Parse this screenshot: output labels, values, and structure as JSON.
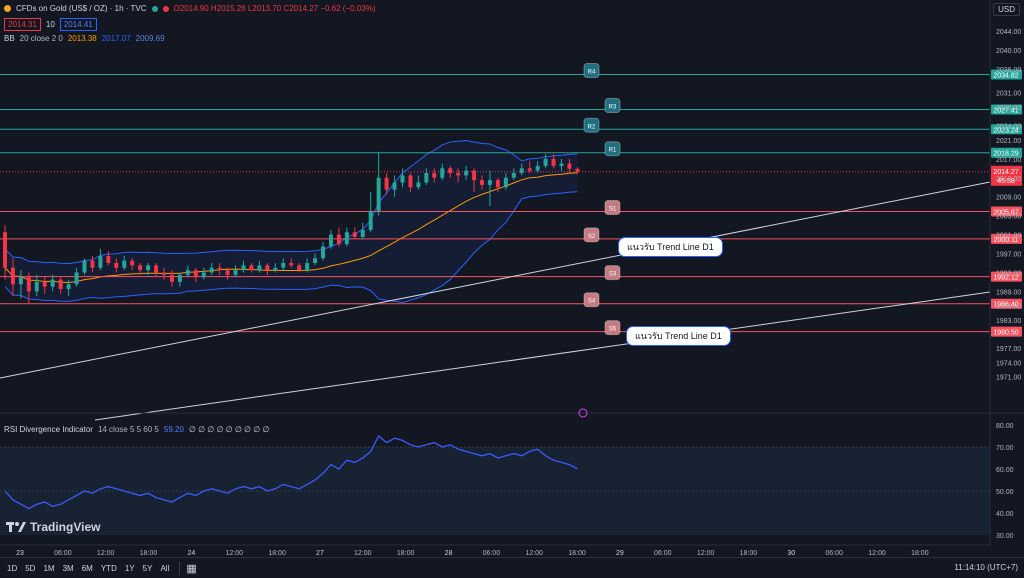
{
  "header": {
    "title": "CFDs on Gold (US$ / OZ) · 1h · TVC",
    "ohlc": "O2014.90 H2015.26 L2013.70 C2014.27 −0.62 (−0.03%)",
    "bid": "2014.31",
    "spread": "10",
    "ask": "2014.41",
    "currency": "USD"
  },
  "bb": {
    "name": "BB",
    "params": "20 close 2 0",
    "basis": "2013.38",
    "upper": "2017.07",
    "lower": "2009.69"
  },
  "rsi": {
    "name": "RSI Divergence Indicator",
    "params": "14 close 5 5 60 5",
    "value": "59.20",
    "extras": "∅ ∅ ∅ ∅ ∅ ∅ ∅ ∅ ∅"
  },
  "levels": [
    {
      "name": "R4",
      "price": 2034.82,
      "label": "2034.82",
      "kind": "res"
    },
    {
      "name": "R3",
      "price": 2027.41,
      "label": "2027.41",
      "kind": "res"
    },
    {
      "name": "R2",
      "price": 2023.24,
      "label": "2023.24",
      "kind": "res"
    },
    {
      "name": "R1",
      "price": 2018.29,
      "label": "2018.29",
      "kind": "res"
    },
    {
      "name": "S1",
      "price": 2005.87,
      "label": "2005.87",
      "kind": "sup"
    },
    {
      "name": "S2",
      "price": 2000.11,
      "label": "2000.11",
      "kind": "sup"
    },
    {
      "name": "S3",
      "price": 1992.12,
      "label": "1992.12",
      "kind": "sup"
    },
    {
      "name": "S4",
      "price": 1986.4,
      "label": "1986.40",
      "kind": "sup"
    },
    {
      "name": "S5",
      "price": 1980.5,
      "label": "1980.50",
      "kind": "sup"
    }
  ],
  "current_price": {
    "price": 2014.27,
    "label": "2014.27",
    "countdown": "45:58"
  },
  "price_axis": [
    "2044.00",
    "2040.00",
    "2036.00",
    "2031.00",
    "2028.00",
    "2024.00",
    "2021.00",
    "2017.00",
    "2013.00",
    "2009.00",
    "2005.00",
    "2001.00",
    "1997.00",
    "1993.00",
    "1989.00",
    "1986.00",
    "1983.00",
    "1977.00",
    "1974.00",
    "1971.00"
  ],
  "rsi_axis": [
    "80.00",
    "70.00",
    "60.00",
    "50.00",
    "40.00",
    "30.00"
  ],
  "time_axis": [
    "23",
    "06:00",
    "12:00",
    "18:00",
    "24",
    "12:00",
    "18:00",
    "27",
    "12:00",
    "18:00",
    "28",
    "06:00",
    "12:00",
    "18:00",
    "29",
    "06:00",
    "12:00",
    "18:00",
    "30",
    "06:00",
    "12:00",
    "18:00"
  ],
  "annotations": [
    {
      "text": "แนวรับ Trend Line D1"
    },
    {
      "text": "แนวรับ Trend Line D1"
    }
  ],
  "brand": "TradingView",
  "toolbar": {
    "timeframes": [
      "1D",
      "5D",
      "1M",
      "3M",
      "6M",
      "YTD",
      "1Y",
      "5Y",
      "All"
    ],
    "clock": "11:14:10 (UTC+7)"
  },
  "colors": {
    "up": "#26a69a",
    "down": "#f23645",
    "resistance": "#26a69a",
    "support": "#f7525f",
    "bb_band": "#2962ff",
    "bb_basis": "#ff9800",
    "rsi_line": "#3d5afe"
  },
  "chart_data": {
    "type": "candlestick",
    "interval": "1h",
    "symbol": "CFDs on Gold (US$ / OZ)",
    "candles": [
      [
        2001.5,
        1994.0,
        2003.0,
        1991.5
      ],
      [
        1994.0,
        1990.5,
        1996.0,
        1988.0
      ],
      [
        1990.5,
        1992.0,
        1993.5,
        1987.5
      ],
      [
        1992.0,
        1989.0,
        1993.0,
        1986.5
      ],
      [
        1989.0,
        1991.0,
        1992.5,
        1988.0
      ],
      [
        1991.0,
        1990.0,
        1992.0,
        1988.5
      ],
      [
        1990.0,
        1991.5,
        1992.5,
        1989.0
      ],
      [
        1991.5,
        1989.5,
        1992.0,
        1988.5
      ],
      [
        1989.5,
        1990.5,
        1991.5,
        1988.0
      ],
      [
        1990.5,
        1993.0,
        1994.0,
        1990.0
      ],
      [
        1993.0,
        1995.5,
        1996.0,
        1992.5
      ],
      [
        1995.5,
        1994.0,
        1996.5,
        1993.0
      ],
      [
        1994.0,
        1996.5,
        1998.0,
        1993.5
      ],
      [
        1996.5,
        1995.0,
        1997.5,
        1994.5
      ],
      [
        1995.0,
        1994.0,
        1996.0,
        1993.0
      ],
      [
        1994.0,
        1995.5,
        1996.5,
        1993.5
      ],
      [
        1995.5,
        1994.5,
        1996.0,
        1993.5
      ],
      [
        1994.5,
        1993.5,
        1995.0,
        1992.5
      ],
      [
        1993.5,
        1994.5,
        1995.0,
        1992.5
      ],
      [
        1994.5,
        1993.0,
        1995.0,
        1992.0
      ],
      [
        1993.0,
        1992.5,
        1994.0,
        1991.5
      ],
      [
        1992.5,
        1991.0,
        1993.5,
        1990.0
      ],
      [
        1991.0,
        1992.5,
        1993.0,
        1990.0
      ],
      [
        1992.5,
        1993.5,
        1994.5,
        1992.0
      ],
      [
        1993.5,
        1992.0,
        1994.0,
        1991.0
      ],
      [
        1992.0,
        1993.0,
        1994.0,
        1991.5
      ],
      [
        1993.0,
        1994.0,
        1995.0,
        1992.5
      ],
      [
        1994.0,
        1993.5,
        1995.0,
        1992.5
      ],
      [
        1993.5,
        1992.5,
        1994.0,
        1991.5
      ],
      [
        1992.5,
        1993.5,
        1994.5,
        1992.0
      ],
      [
        1993.5,
        1994.5,
        1995.5,
        1993.0
      ],
      [
        1994.5,
        1993.5,
        1995.0,
        1993.0
      ],
      [
        1993.5,
        1994.5,
        1995.5,
        1993.0
      ],
      [
        1994.5,
        1993.5,
        1995.0,
        1992.5
      ],
      [
        1993.5,
        1994.0,
        1995.0,
        1993.0
      ],
      [
        1994.0,
        1995.0,
        1996.0,
        1993.5
      ],
      [
        1995.0,
        1994.5,
        1996.0,
        1994.0
      ],
      [
        1994.5,
        1993.5,
        1995.0,
        1993.0
      ],
      [
        1993.5,
        1995.0,
        1996.0,
        1993.0
      ],
      [
        1995.0,
        1996.0,
        1997.0,
        1994.5
      ],
      [
        1996.0,
        1998.5,
        1999.5,
        1995.5
      ],
      [
        1998.5,
        2001.0,
        2002.0,
        1998.0
      ],
      [
        2001.0,
        1999.0,
        2002.5,
        1998.5
      ],
      [
        1999.0,
        2001.5,
        2002.5,
        1998.5
      ],
      [
        2001.5,
        2000.5,
        2002.5,
        2000.0
      ],
      [
        2000.5,
        2002.0,
        2003.5,
        2000.0
      ],
      [
        2002.0,
        2006.0,
        2010.0,
        2001.5
      ],
      [
        2006.0,
        2013.0,
        2018.5,
        2005.0
      ],
      [
        2013.0,
        2010.5,
        2014.0,
        2009.5
      ],
      [
        2010.5,
        2012.0,
        2013.5,
        2009.0
      ],
      [
        2012.0,
        2013.5,
        2015.0,
        2011.0
      ],
      [
        2013.5,
        2011.0,
        2014.0,
        2010.0
      ],
      [
        2011.0,
        2012.0,
        2013.5,
        2010.5
      ],
      [
        2012.0,
        2014.0,
        2015.0,
        2011.5
      ],
      [
        2014.0,
        2013.0,
        2015.0,
        2012.0
      ],
      [
        2013.0,
        2015.0,
        2016.0,
        2012.5
      ],
      [
        2015.0,
        2014.0,
        2015.5,
        2013.0
      ],
      [
        2014.0,
        2013.5,
        2015.0,
        2012.0
      ],
      [
        2013.5,
        2014.5,
        2015.5,
        2012.5
      ],
      [
        2014.5,
        2012.5,
        2015.0,
        2010.0
      ],
      [
        2012.5,
        2011.5,
        2013.5,
        2010.5
      ],
      [
        2011.5,
        2012.5,
        2014.5,
        2007.0
      ],
      [
        2012.5,
        2011.0,
        2013.0,
        2010.0
      ],
      [
        2011.0,
        2013.0,
        2014.0,
        2010.5
      ],
      [
        2013.0,
        2014.0,
        2015.0,
        2012.5
      ],
      [
        2014.0,
        2015.0,
        2016.0,
        2013.5
      ],
      [
        2015.0,
        2014.5,
        2016.5,
        2014.0
      ],
      [
        2014.5,
        2015.5,
        2016.5,
        2014.0
      ],
      [
        2015.5,
        2017.0,
        2018.0,
        2015.0
      ],
      [
        2017.0,
        2015.5,
        2018.0,
        2015.0
      ],
      [
        2015.5,
        2016.0,
        2017.0,
        2014.5
      ],
      [
        2016.0,
        2014.9,
        2017.0,
        2014.0
      ],
      [
        2014.9,
        2014.27,
        2015.26,
        2013.7
      ]
    ]
  }
}
